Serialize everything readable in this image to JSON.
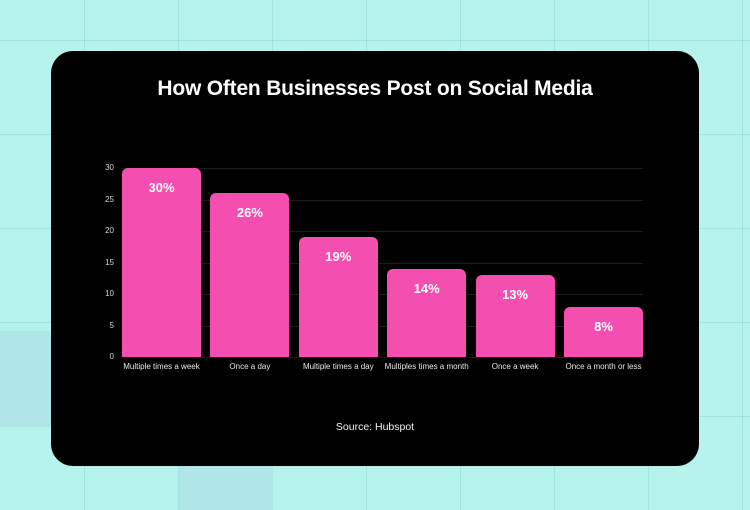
{
  "colors": {
    "background": "#b6f3ec",
    "card": "#000000",
    "bar": "#f44fb0",
    "text": "#ffffff"
  },
  "chart_data": {
    "type": "bar",
    "title": "How Often Businesses Post on Social Media",
    "categories": [
      "Multiple times a week",
      "Once a day",
      "Multiple times a day",
      "Multiples times a month",
      "Once a week",
      "Once a month or less"
    ],
    "values": [
      30,
      26,
      19,
      14,
      13,
      8
    ],
    "data_labels": [
      "30%",
      "26%",
      "19%",
      "14%",
      "13%",
      "8%"
    ],
    "xlabel": "",
    "ylabel": "",
    "ylim": [
      0,
      30
    ],
    "yticks": [
      0,
      5,
      10,
      15,
      20,
      25,
      30
    ],
    "grid": true,
    "legend": null,
    "source": "Source: Hubspot"
  }
}
